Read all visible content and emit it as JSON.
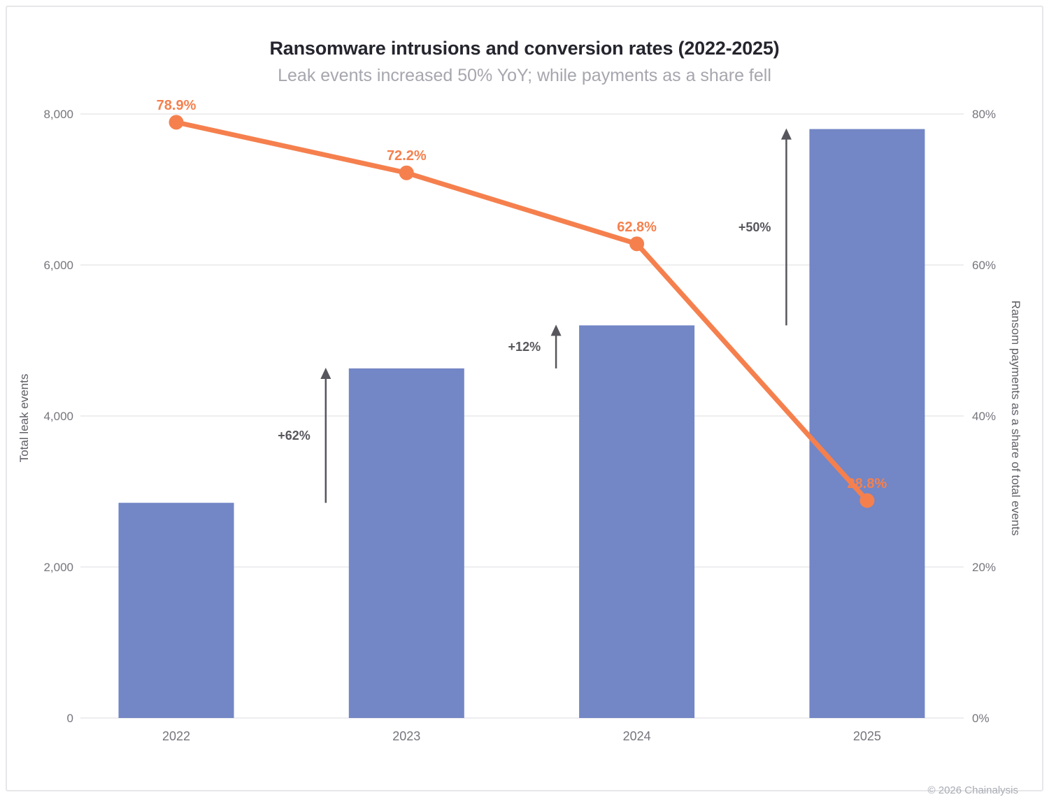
{
  "title": "Ransomware intrusions and conversion rates (2022-2025)",
  "subtitle": "Leak events increased 50% YoY; while payments as a share fell",
  "credit": "© 2026 Chainalysis",
  "colors": {
    "bar": "#7386C5",
    "line": "#F5804E",
    "annotation": "#56565c",
    "gridline": "#e8e8eb",
    "tick_text": "#75757d"
  },
  "chart_data": {
    "type": "combo-bar-line",
    "categories": [
      "2022",
      "2023",
      "2024",
      "2025"
    ],
    "series": [
      {
        "name": "Total leak events",
        "type": "bar",
        "axis": "left",
        "color": "#7386C5",
        "values": [
          2850,
          4630,
          5200,
          7800
        ]
      },
      {
        "name": "Ransom payments as a share of total events",
        "type": "line",
        "axis": "right",
        "color": "#F5804E",
        "values": [
          78.9,
          72.2,
          62.8,
          28.8
        ],
        "point_labels": [
          "78.9%",
          "72.2%",
          "62.8%",
          "28.8%"
        ]
      }
    ],
    "annotations": [
      {
        "label": "+62%",
        "from_category": "2022",
        "to_category": "2023"
      },
      {
        "label": "+12%",
        "from_category": "2023",
        "to_category": "2024"
      },
      {
        "label": "+50%",
        "from_category": "2024",
        "to_category": "2025"
      }
    ],
    "left_axis": {
      "label": "Total leak events",
      "ticks": [
        "8,000",
        "6,000",
        "4,000",
        "2,000",
        "0"
      ],
      "min": 0,
      "max": 8000
    },
    "right_axis": {
      "label": "Ransom payments as a share of total events",
      "ticks": [
        "80%",
        "60%",
        "40%",
        "20%",
        "0%"
      ],
      "min": 0,
      "max": 80
    },
    "grid": true,
    "legend": "none",
    "title": "Ransomware intrusions and conversion rates (2022-2025)",
    "subtitle": "Leak events increased 50% YoY; while payments as a share fell"
  }
}
